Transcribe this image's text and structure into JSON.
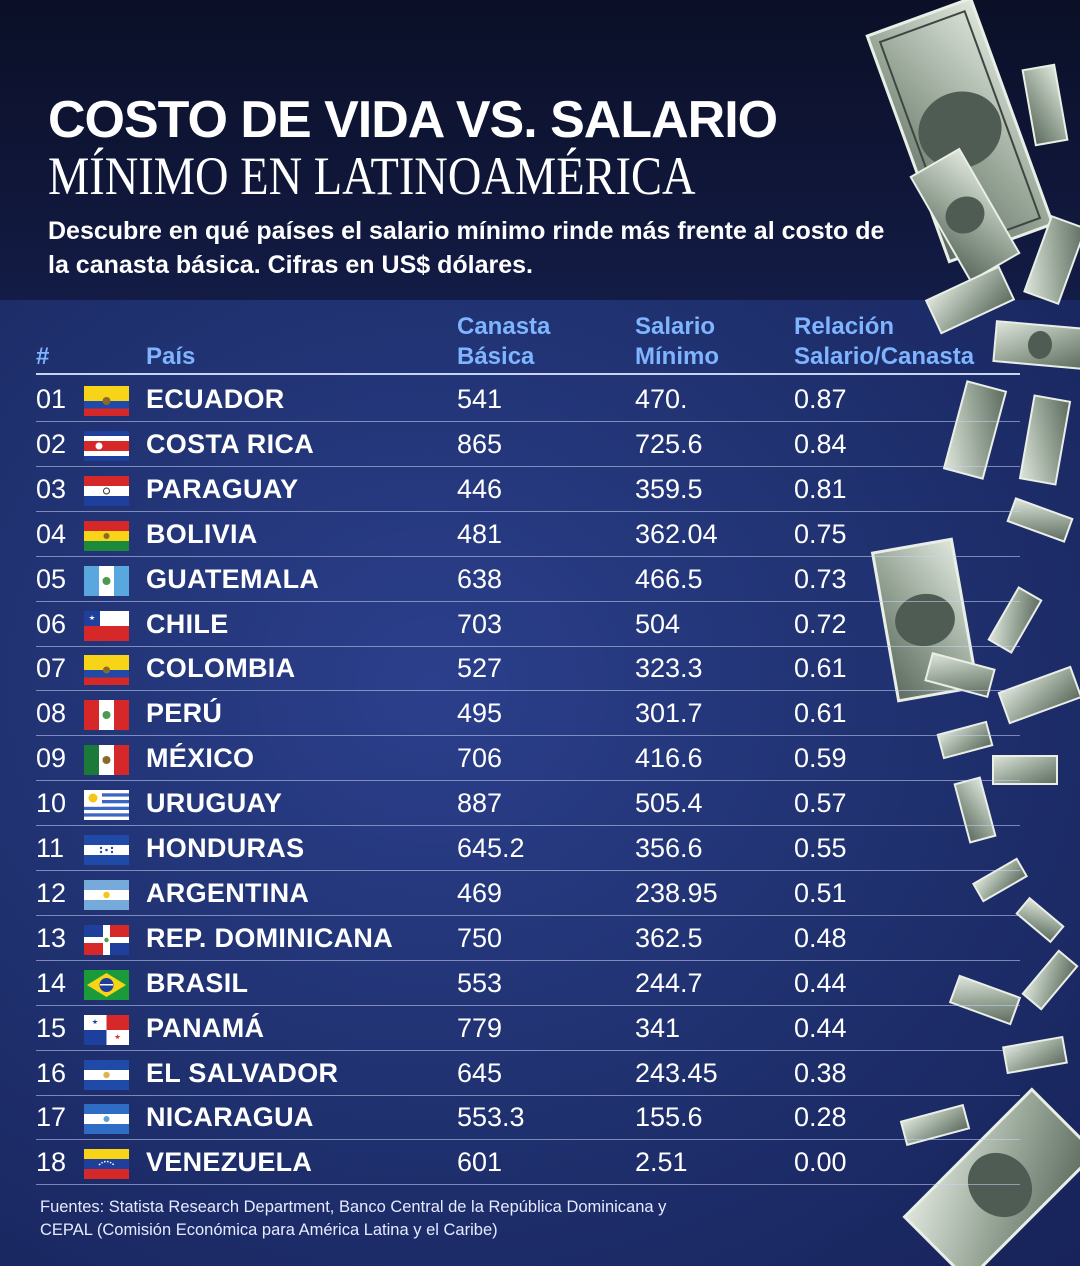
{
  "title_line1": "COSTO DE VIDA VS. SALARIO",
  "title_line2": "MÍNIMO EN LATINOAMÉRICA",
  "subtitle": "Descubre en qué países el salario mínimo rinde más frente al costo de la canasta básica. Cifras en US$ dólares.",
  "headers": {
    "rank": "#",
    "country": "País",
    "basket_1": "Canasta",
    "basket_2": "Básica",
    "wage_1": "Salario",
    "wage_2": "Mínimo",
    "ratio_1": "Relación",
    "ratio_2": "Salario/Canasta"
  },
  "chart_data": {
    "type": "table",
    "columns": [
      "#",
      "País",
      "Canasta Básica",
      "Salario Mínimo",
      "Relación Salario/Canasta"
    ],
    "rows": [
      {
        "rank": "01",
        "flag": "ecuador",
        "country": "ECUADOR",
        "basket": "541",
        "wage": "470.",
        "ratio": "0.87"
      },
      {
        "rank": "02",
        "flag": "costa-rica",
        "country": "COSTA RICA",
        "basket": "865",
        "wage": "725.6",
        "ratio": "0.84"
      },
      {
        "rank": "03",
        "flag": "paraguay",
        "country": "PARAGUAY",
        "basket": "446",
        "wage": "359.5",
        "ratio": "0.81"
      },
      {
        "rank": "04",
        "flag": "bolivia",
        "country": "BOLIVIA",
        "basket": "481",
        "wage": "362.04",
        "ratio": "0.75"
      },
      {
        "rank": "05",
        "flag": "guatemala",
        "country": "GUATEMALA",
        "basket": "638",
        "wage": "466.5",
        "ratio": "0.73"
      },
      {
        "rank": "06",
        "flag": "chile",
        "country": "CHILE",
        "basket": "703",
        "wage": "504",
        "ratio": "0.72"
      },
      {
        "rank": "07",
        "flag": "colombia",
        "country": "COLOMBIA",
        "basket": "527",
        "wage": "323.3",
        "ratio": "0.61"
      },
      {
        "rank": "08",
        "flag": "peru",
        "country": "PERÚ",
        "basket": "495",
        "wage": "301.7",
        "ratio": "0.61"
      },
      {
        "rank": "09",
        "flag": "mexico",
        "country": "MÉXICO",
        "basket": "706",
        "wage": "416.6",
        "ratio": "0.59"
      },
      {
        "rank": "10",
        "flag": "uruguay",
        "country": "URUGUAY",
        "basket": "887",
        "wage": "505.4",
        "ratio": "0.57"
      },
      {
        "rank": "11",
        "flag": "honduras",
        "country": "HONDURAS",
        "basket": "645.2",
        "wage": "356.6",
        "ratio": "0.55"
      },
      {
        "rank": "12",
        "flag": "argentina",
        "country": "ARGENTINA",
        "basket": "469",
        "wage": "238.95",
        "ratio": "0.51"
      },
      {
        "rank": "13",
        "flag": "dominican-republic",
        "country": "REP. DOMINICANA",
        "basket": "750",
        "wage": "362.5",
        "ratio": "0.48"
      },
      {
        "rank": "14",
        "flag": "brazil",
        "country": "BRASIL",
        "basket": "553",
        "wage": "244.7",
        "ratio": "0.44"
      },
      {
        "rank": "15",
        "flag": "panama",
        "country": "PANAMÁ",
        "basket": "779",
        "wage": "341",
        "ratio": "0.44"
      },
      {
        "rank": "16",
        "flag": "el-salvador",
        "country": "EL SALVADOR",
        "basket": "645",
        "wage": "243.45",
        "ratio": "0.38"
      },
      {
        "rank": "17",
        "flag": "nicaragua",
        "country": "NICARAGUA",
        "basket": "553.3",
        "wage": "155.6",
        "ratio": "0.28"
      },
      {
        "rank": "18",
        "flag": "venezuela",
        "country": "VENEZUELA",
        "basket": "601",
        "wage": "2.51",
        "ratio": "0.00"
      }
    ]
  },
  "source_line1": "Fuentes: Statista Research Department, Banco Central de la República Dominicana y",
  "source_line2": "CEPAL (Comisión Económica para América Latina y el Caribe)",
  "colors": {
    "header_bg": "#0b1027",
    "table_bg": "#213373",
    "column_header": "#7fb4ff",
    "text": "#ffffff"
  },
  "decoration_icon": "dollar-bill-icon"
}
